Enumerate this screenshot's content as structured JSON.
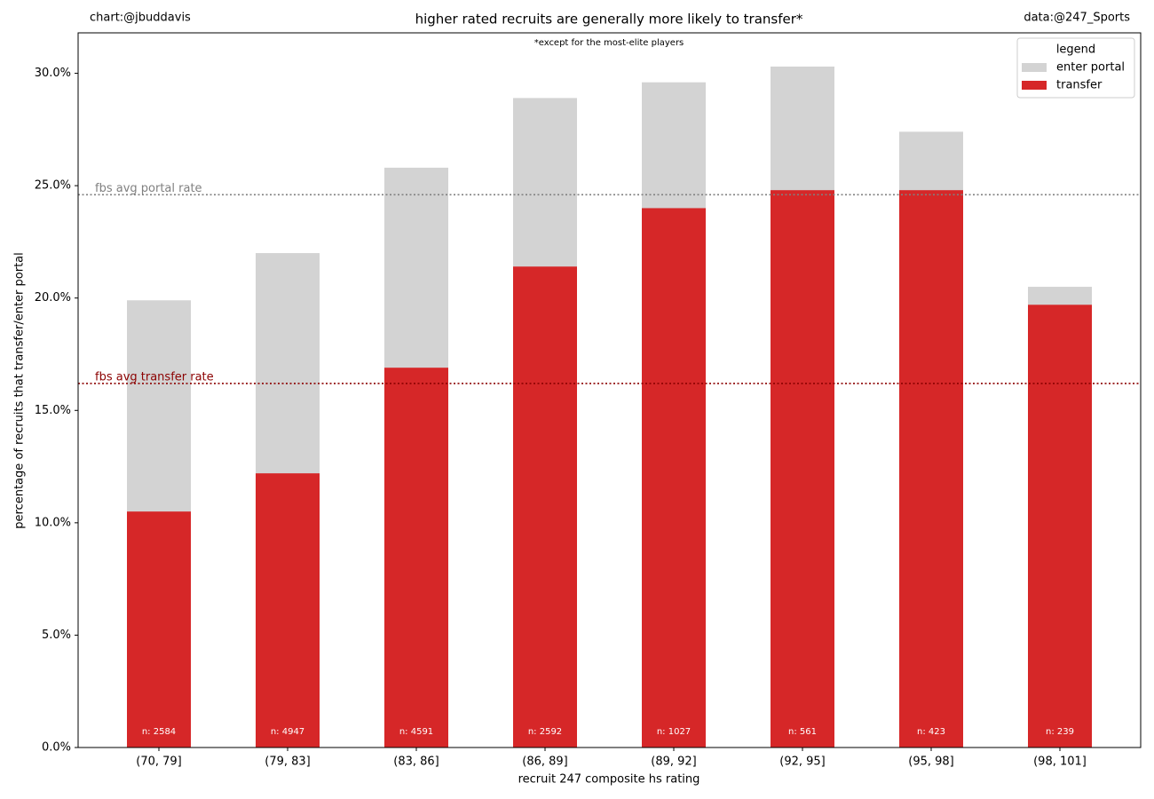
{
  "chart_data": {
    "type": "bar",
    "title": "higher rated recruits are generally more likely to transfer*",
    "subtitle": "*except for the most-elite players",
    "credit_left": "chart:@jbuddavis",
    "credit_right": "data:@247_Sports",
    "xlabel": "recruit 247 composite hs rating",
    "ylabel": "percentage of recruits that transfer/enter portal",
    "categories": [
      "(70, 79]",
      "(79, 83]",
      "(83, 86]",
      "(86, 89]",
      "(89, 92]",
      "(92, 95]",
      "(95, 98]",
      "(98, 101]"
    ],
    "series": [
      {
        "name": "enter portal",
        "color": "#d3d3d3",
        "values": [
          19.9,
          22.0,
          25.8,
          28.9,
          29.6,
          30.3,
          27.4,
          20.5
        ]
      },
      {
        "name": "transfer",
        "color": "#d62728",
        "values": [
          10.5,
          12.2,
          16.9,
          21.4,
          24.0,
          24.8,
          24.8,
          19.7
        ]
      }
    ],
    "bar_labels": [
      "n: 2584",
      "n: 4947",
      "n: 4591",
      "n: 2592",
      "n: 1027",
      "n: 561",
      "n: 423",
      "n: 239"
    ],
    "reference_lines": [
      {
        "label": "fbs avg portal rate",
        "value": 24.6,
        "color": "#808080"
      },
      {
        "label": "fbs avg transfer rate",
        "value": 16.2,
        "color": "#8b0000"
      }
    ],
    "ylim": [
      0,
      31.8
    ],
    "yticks": [
      {
        "value": 0,
        "label": "0.0%"
      },
      {
        "value": 5,
        "label": "5.0%"
      },
      {
        "value": 10,
        "label": "10.0%"
      },
      {
        "value": 15,
        "label": "15.0%"
      },
      {
        "value": 20,
        "label": "20.0%"
      },
      {
        "value": 25,
        "label": "25.0%"
      },
      {
        "value": 30,
        "label": "30.0%"
      }
    ],
    "legend_title": "legend",
    "legend_position": "upper right"
  }
}
